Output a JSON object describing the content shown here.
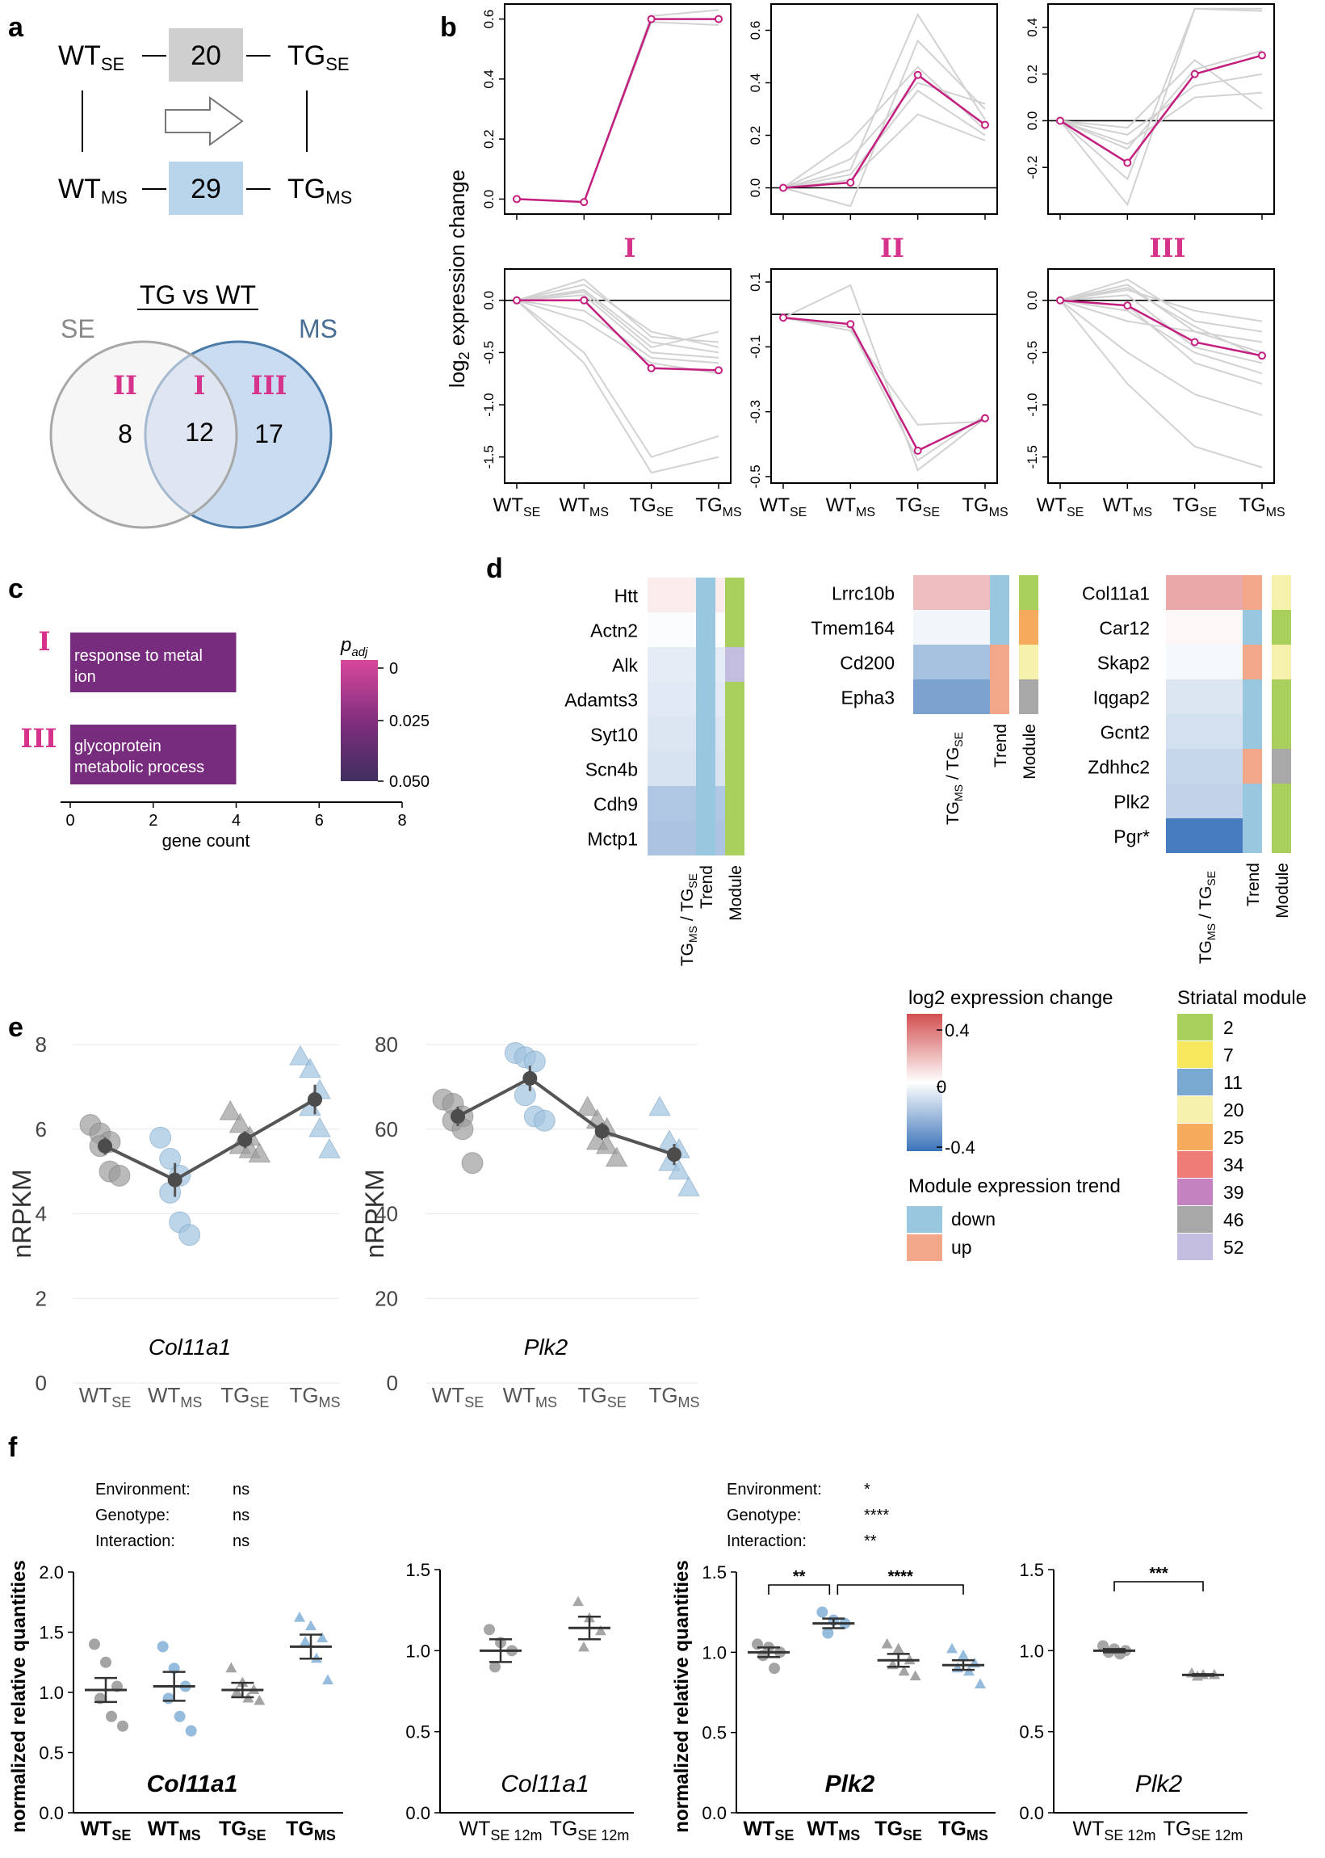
{
  "panel_labels": {
    "a": "a",
    "b": "b",
    "c": "c",
    "d": "d",
    "e": "e",
    "f": "f"
  },
  "colors": {
    "magenta": "#c21f7f",
    "grey_line": "#d2d2d2",
    "se_circle": "#a8a8a8",
    "ms_circle": "#4a7aa8",
    "ms_fill": "#cadcf1",
    "se_fill": "#f0eef0",
    "box_se": "#cfcfcf",
    "box_ms": "#b8d5ec",
    "roman": "#d6338c",
    "point_grey": "#a7a7a7",
    "point_blue": "#9fc3de"
  },
  "panel_a": {
    "nodes": {
      "wt_se": "WT",
      "wt_se_sub": "SE",
      "tg_se": "TG",
      "tg_se_sub": "SE",
      "wt_ms": "WT",
      "wt_ms_sub": "MS",
      "tg_ms": "TG",
      "tg_ms_sub": "MS"
    },
    "box_se_value": "20",
    "box_ms_value": "29",
    "venn": {
      "title": "TG vs WT",
      "label_se": "SE",
      "label_ms": "MS",
      "region_ii": "II",
      "region_i": "I",
      "region_iii": "III",
      "count_ii": "8",
      "count_i": "12",
      "count_iii": "17"
    }
  },
  "panel_b": {
    "ylabel_main": "log",
    "ylabel_sub": "2",
    "ylabel_rest": " expression change",
    "xlabels": [
      {
        "m": "WT",
        "s": "SE"
      },
      {
        "m": "WT",
        "s": "MS"
      },
      {
        "m": "TG",
        "s": "SE"
      },
      {
        "m": "TG",
        "s": "MS"
      }
    ],
    "roman": [
      "I",
      "II",
      "III"
    ]
  },
  "chart_data": [
    {
      "type": "line",
      "id": "b-I-up",
      "title": "I",
      "ylim": [
        -0.05,
        0.65
      ],
      "yticks": [
        0.0,
        0.2,
        0.4,
        0.6
      ],
      "ytick_labels": [
        "0.0",
        "0.2",
        "0.4",
        "0.6"
      ],
      "zero_line": false,
      "x": [
        "WT SE",
        "WT MS",
        "TG SE",
        "TG MS"
      ],
      "series": [
        {
          "name": "mean",
          "values": [
            0.0,
            -0.01,
            0.6,
            0.6
          ]
        },
        {
          "name": "gene",
          "values": [
            0.0,
            -0.01,
            0.61,
            0.63
          ]
        },
        {
          "name": "gene",
          "values": [
            0.0,
            -0.01,
            0.59,
            0.58
          ]
        }
      ]
    },
    {
      "type": "line",
      "id": "b-II-up",
      "title": "II",
      "ylim": [
        -0.1,
        0.7
      ],
      "yticks": [
        0.0,
        0.2,
        0.4,
        0.6
      ],
      "ytick_labels": [
        "0.0",
        "0.2",
        "0.4",
        "0.6"
      ],
      "zero_line": true,
      "x": [
        "WT SE",
        "WT MS",
        "TG SE",
        "TG MS"
      ],
      "series": [
        {
          "name": "mean",
          "values": [
            0.0,
            0.02,
            0.43,
            0.24
          ]
        },
        {
          "name": "gene",
          "values": [
            0.0,
            0.07,
            0.66,
            0.26
          ]
        },
        {
          "name": "gene",
          "values": [
            0.0,
            -0.07,
            0.56,
            0.3
          ]
        },
        {
          "name": "gene",
          "values": [
            0.0,
            0.18,
            0.46,
            0.22
          ]
        },
        {
          "name": "gene",
          "values": [
            0.0,
            0.05,
            0.37,
            0.2
          ]
        },
        {
          "name": "gene",
          "values": [
            0.0,
            0.03,
            0.28,
            0.18
          ]
        },
        {
          "name": "gene",
          "values": [
            0.0,
            0.11,
            0.4,
            0.32
          ]
        }
      ]
    },
    {
      "type": "line",
      "id": "b-III-up",
      "title": "III",
      "ylim": [
        -0.4,
        0.5
      ],
      "yticks": [
        -0.2,
        0.0,
        0.2,
        0.4
      ],
      "ytick_labels": [
        "-0.2",
        "0.0",
        "0.2",
        "0.4"
      ],
      "zero_line": true,
      "x": [
        "WT SE",
        "WT MS",
        "TG SE",
        "TG MS"
      ],
      "series": [
        {
          "name": "mean",
          "values": [
            0.0,
            -0.18,
            0.2,
            0.28
          ]
        },
        {
          "name": "gene",
          "values": [
            0.0,
            -0.36,
            0.48,
            0.47
          ]
        },
        {
          "name": "gene",
          "values": [
            0.0,
            -0.25,
            0.48,
            0.48
          ]
        },
        {
          "name": "gene",
          "values": [
            0.0,
            -0.12,
            0.22,
            0.3
          ]
        },
        {
          "name": "gene",
          "values": [
            0.0,
            -0.06,
            0.15,
            0.2
          ]
        },
        {
          "name": "gene",
          "values": [
            0.0,
            -0.1,
            0.1,
            0.12
          ]
        },
        {
          "name": "gene",
          "values": [
            0.0,
            -0.03,
            0.26,
            0.05
          ]
        }
      ]
    },
    {
      "type": "line",
      "id": "b-I-down",
      "ylim": [
        -1.75,
        0.3
      ],
      "yticks": [
        -1.5,
        -1.0,
        -0.5,
        0.0
      ],
      "ytick_labels": [
        "-1.5",
        "-1.0",
        "-0.5",
        "0.0"
      ],
      "zero_line": true,
      "x": [
        "WT SE",
        "WT MS",
        "TG SE",
        "TG MS"
      ],
      "series": [
        {
          "name": "mean",
          "values": [
            0.0,
            0.0,
            -0.65,
            -0.67
          ]
        },
        {
          "name": "gene",
          "values": [
            0.0,
            -0.6,
            -1.65,
            -1.5
          ]
        },
        {
          "name": "gene",
          "values": [
            0.0,
            -0.5,
            -1.5,
            -1.3
          ]
        },
        {
          "name": "gene",
          "values": [
            0.0,
            0.2,
            -0.35,
            -0.4
          ]
        },
        {
          "name": "gene",
          "values": [
            0.0,
            0.15,
            -0.3,
            -0.45
          ]
        },
        {
          "name": "gene",
          "values": [
            0.0,
            0.1,
            -0.4,
            -0.5
          ]
        },
        {
          "name": "gene",
          "values": [
            0.0,
            0.05,
            -0.5,
            -0.55
          ]
        },
        {
          "name": "gene",
          "values": [
            0.0,
            -0.2,
            -0.6,
            -0.7
          ]
        },
        {
          "name": "gene",
          "values": [
            0.0,
            0.08,
            -0.45,
            -0.3
          ]
        },
        {
          "name": "gene",
          "values": [
            0.0,
            -0.1,
            -0.55,
            -0.6
          ]
        }
      ]
    },
    {
      "type": "line",
      "id": "b-II-down",
      "ylim": [
        -0.52,
        0.14
      ],
      "yticks": [
        -0.5,
        -0.3,
        -0.1,
        0.1
      ],
      "ytick_labels": [
        "-0.5",
        "-0.3",
        "-0.1",
        "0.1"
      ],
      "zero_line": true,
      "x": [
        "WT SE",
        "WT MS",
        "TG SE",
        "TG MS"
      ],
      "series": [
        {
          "name": "mean",
          "values": [
            -0.01,
            -0.03,
            -0.42,
            -0.32
          ]
        },
        {
          "name": "gene",
          "values": [
            -0.01,
            0.09,
            -0.48,
            -0.32
          ]
        },
        {
          "name": "gene",
          "values": [
            -0.01,
            -0.05,
            -0.34,
            -0.33
          ]
        },
        {
          "name": "gene",
          "values": [
            -0.01,
            -0.04,
            -0.45,
            -0.31
          ]
        }
      ]
    },
    {
      "type": "line",
      "id": "b-III-down",
      "ylim": [
        -1.75,
        0.3
      ],
      "yticks": [
        -1.5,
        -1.0,
        -0.5,
        0.0
      ],
      "ytick_labels": [
        "-1.5",
        "-1.0",
        "-0.5",
        "0.0"
      ],
      "zero_line": true,
      "x": [
        "WT SE",
        "WT MS",
        "TG SE",
        "TG MS"
      ],
      "series": [
        {
          "name": "mean",
          "values": [
            0.0,
            -0.05,
            -0.4,
            -0.53
          ]
        },
        {
          "name": "gene",
          "values": [
            0.0,
            -0.8,
            -1.4,
            -1.6
          ]
        },
        {
          "name": "gene",
          "values": [
            0.0,
            -0.5,
            -0.9,
            -1.1
          ]
        },
        {
          "name": "gene",
          "values": [
            0.0,
            0.2,
            -0.2,
            -0.3
          ]
        },
        {
          "name": "gene",
          "values": [
            0.0,
            0.15,
            -0.3,
            -0.5
          ]
        },
        {
          "name": "gene",
          "values": [
            0.0,
            0.1,
            -0.1,
            -0.2
          ]
        },
        {
          "name": "gene",
          "values": [
            0.0,
            0.05,
            -0.45,
            -0.6
          ]
        },
        {
          "name": "gene",
          "values": [
            0.0,
            -0.1,
            -0.5,
            -0.7
          ]
        },
        {
          "name": "gene",
          "values": [
            0.0,
            -0.2,
            -0.3,
            -0.4
          ]
        },
        {
          "name": "gene",
          "values": [
            0.0,
            0.12,
            -0.25,
            -0.55
          ]
        },
        {
          "name": "gene",
          "values": [
            0.0,
            -0.05,
            -0.6,
            -0.8
          ]
        }
      ]
    },
    {
      "type": "bar",
      "id": "c-go",
      "orientation": "horizontal",
      "categories": [
        "response to metal ion",
        "glycoprotein metabolic process"
      ],
      "values": [
        4,
        4
      ],
      "xlabel": "gene count",
      "xlim": [
        0,
        8
      ],
      "xticks": [
        0,
        2,
        4,
        6,
        8
      ],
      "colorbar_title": "p",
      "colorbar_sub": "adj",
      "colorbar_ticks": [
        "0",
        "0.025",
        "0.050"
      ]
    },
    {
      "type": "heatmap",
      "id": "d-1",
      "genes": [
        "Htt",
        "Actn2",
        "Alk",
        "Adamts3",
        "Syt10",
        "Scn4b",
        "Cdh9",
        "Mctp1"
      ],
      "values": [
        0.05,
        -0.01,
        -0.06,
        -0.07,
        -0.08,
        -0.09,
        -0.18,
        -0.19
      ],
      "trend": [
        "down",
        "down",
        "down",
        "down",
        "down",
        "down",
        "down",
        "down"
      ],
      "module": [
        "2",
        "2",
        "52",
        "2",
        "2",
        "2",
        "2",
        "2"
      ]
    },
    {
      "type": "heatmap",
      "id": "d-2",
      "genes": [
        "Lrrc10b",
        "Tmem164",
        "Cd200",
        "Epha3"
      ],
      "values": [
        0.17,
        -0.03,
        -0.2,
        -0.3
      ],
      "trend": [
        "down",
        "down",
        "up",
        "up"
      ],
      "module": [
        "2",
        "25",
        "20",
        "46"
      ]
    },
    {
      "type": "heatmap",
      "id": "d-3",
      "genes": [
        "Col11a1",
        "Car12",
        "Skap2",
        "Iqgap2",
        "Gcnt2",
        "Zdhhc2",
        "Plk2",
        "Pgr*"
      ],
      "values": [
        0.22,
        0.02,
        -0.02,
        -0.08,
        -0.1,
        -0.13,
        -0.14,
        -0.42
      ],
      "trend": [
        "up",
        "down",
        "up",
        "down",
        "down",
        "up",
        "down",
        "down"
      ],
      "module": [
        "20",
        "2",
        "20",
        "2",
        "2",
        "46",
        "2",
        "2"
      ]
    },
    {
      "type": "scatter",
      "id": "e-col11a1",
      "gene": "Col11a1",
      "ylabel": "nRPKM",
      "ylim": [
        0,
        8
      ],
      "yticks": [
        0,
        2,
        4,
        6,
        8
      ],
      "groups": [
        "WT SE",
        "WT MS",
        "TG SE",
        "TG MS"
      ],
      "points": [
        [
          6.1,
          5.9,
          5.7,
          5.6,
          5.0,
          4.9
        ],
        [
          5.8,
          5.3,
          4.9,
          4.5,
          3.8,
          3.5
        ],
        [
          6.4,
          6.1,
          5.8,
          5.6,
          5.5,
          5.4
        ],
        [
          7.7,
          7.4,
          6.9,
          6.5,
          6.0,
          5.5
        ]
      ],
      "means": [
        5.6,
        4.8,
        5.75,
        6.7
      ],
      "sem": [
        0.2,
        0.4,
        0.2,
        0.35
      ]
    },
    {
      "type": "scatter",
      "id": "e-plk2",
      "gene": "Plk2",
      "ylabel": "nRPKM",
      "ylim": [
        0,
        80
      ],
      "yticks": [
        0,
        20,
        40,
        60,
        80
      ],
      "groups": [
        "WT SE",
        "WT MS",
        "TG SE",
        "TG MS"
      ],
      "points": [
        [
          67,
          66,
          63,
          62,
          60,
          52
        ],
        [
          78,
          77,
          76,
          68,
          63,
          62
        ],
        [
          65,
          62,
          60,
          57,
          56,
          53
        ],
        [
          65,
          57,
          55,
          52,
          50,
          46
        ]
      ],
      "means": [
        63,
        72,
        59.5,
        54
      ],
      "sem": [
        2.3,
        3,
        2,
        2.5
      ]
    },
    {
      "type": "scatter",
      "id": "f-col11a1",
      "gene": "Col11a1",
      "ylabel": "normalized relative quantities",
      "ylim": [
        0,
        2
      ],
      "yticks": [
        0,
        0.5,
        1,
        1.5,
        2
      ],
      "groups": [
        "WT SE",
        "WT MS",
        "TG SE",
        "TG MS"
      ],
      "points": [
        [
          1.4,
          1.25,
          1.05,
          0.95,
          0.8,
          0.72
        ],
        [
          1.38,
          1.2,
          1.05,
          0.95,
          0.8,
          0.68
        ],
        [
          1.2,
          1.08,
          1.02,
          1.0,
          0.95,
          0.93
        ],
        [
          1.62,
          1.55,
          1.45,
          1.42,
          1.28,
          1.1
        ]
      ],
      "means": [
        1.02,
        1.05,
        1.02,
        1.38
      ],
      "sem": [
        0.1,
        0.12,
        0.06,
        0.1
      ],
      "stats": [
        {
          "label": "Environment:",
          "value": "ns"
        },
        {
          "label": "Genotype:",
          "value": "ns"
        },
        {
          "label": "Interaction:",
          "value": "ns"
        }
      ]
    },
    {
      "type": "scatter",
      "id": "f-col11a1-12m",
      "gene": "Col11a1",
      "ylabel": "",
      "ylim": [
        0,
        1.5
      ],
      "yticks": [
        0,
        0.5,
        1,
        1.5
      ],
      "groups": [
        "WT SE 12m",
        "TG SE 12m"
      ],
      "points": [
        [
          1.13,
          1.05,
          1.0,
          0.9
        ],
        [
          1.3,
          1.2,
          1.12,
          1.02
        ]
      ],
      "means": [
        1.0,
        1.14
      ],
      "sem": [
        0.07,
        0.07
      ]
    },
    {
      "type": "scatter",
      "id": "f-plk2",
      "gene": "Plk2",
      "ylabel": "normalized relative quantities",
      "ylim": [
        0,
        1.5
      ],
      "yticks": [
        0,
        0.5,
        1,
        1.5
      ],
      "groups": [
        "WT SE",
        "WT MS",
        "TG SE",
        "TG MS"
      ],
      "points": [
        [
          1.05,
          1.03,
          1.0,
          0.98,
          0.9
        ],
        [
          1.25,
          1.2,
          1.18,
          1.12
        ],
        [
          1.05,
          1.02,
          0.95,
          0.92,
          0.88,
          0.85
        ],
        [
          1.02,
          0.98,
          0.93,
          0.9,
          0.88,
          0.8
        ]
      ],
      "means": [
        1.0,
        1.18,
        0.95,
        0.92
      ],
      "sem": [
        0.03,
        0.03,
        0.04,
        0.03
      ],
      "stats": [
        {
          "label": "Environment:",
          "value": "*"
        },
        {
          "label": "Genotype:",
          "value": "****"
        },
        {
          "label": "Interaction:",
          "value": "**"
        }
      ],
      "significance": [
        {
          "from": 0,
          "to": 1,
          "label": "**"
        },
        {
          "from": 1,
          "to": 3,
          "label": "****"
        }
      ]
    },
    {
      "type": "scatter",
      "id": "f-plk2-12m",
      "gene": "Plk2",
      "ylabel": "",
      "ylim": [
        0,
        1.5
      ],
      "yticks": [
        0,
        0.5,
        1,
        1.5
      ],
      "groups": [
        "WT SE 12m",
        "TG SE 12m"
      ],
      "points": [
        [
          1.03,
          1.01,
          1.0,
          0.99,
          0.98
        ],
        [
          0.86,
          0.85,
          0.85,
          0.84
        ]
      ],
      "means": [
        1.0,
        0.85
      ],
      "sem": [
        0.01,
        0.005
      ],
      "significance": [
        {
          "from": 0,
          "to": 1,
          "label": "***"
        }
      ]
    }
  ],
  "panel_c": {
    "roman": [
      "I",
      "III"
    ],
    "bar_labels": [
      [
        "response to metal",
        "ion"
      ],
      [
        "glycoprotein",
        "metabolic process"
      ]
    ]
  },
  "panel_d": {
    "col_label_main": "TG",
    "col_label_sub1": "MS",
    "col_label_sep": " / TG",
    "col_label_sub2": "SE",
    "trend_label": "Trend",
    "module_label": "Module"
  },
  "legend": {
    "colorbar_title": "log2 expression change",
    "colorbar_ticks": [
      "0.4",
      "0",
      "-0.4"
    ],
    "trend_title": "Module expression trend",
    "trend_items": [
      {
        "label": "down",
        "color": "#9ac7e0"
      },
      {
        "label": "up",
        "color": "#f3a789"
      }
    ],
    "module_title": "Striatal module",
    "module_items": [
      {
        "label": "2",
        "color": "#a9cf5c"
      },
      {
        "label": "7",
        "color": "#f7e85d"
      },
      {
        "label": "11",
        "color": "#79a9d1"
      },
      {
        "label": "20",
        "color": "#f6f2ad"
      },
      {
        "label": "25",
        "color": "#f6aa5c"
      },
      {
        "label": "34",
        "color": "#ee7d78"
      },
      {
        "label": "39",
        "color": "#c482c0"
      },
      {
        "label": "46",
        "color": "#a8a8a8"
      },
      {
        "label": "52",
        "color": "#c3bde0"
      }
    ]
  }
}
